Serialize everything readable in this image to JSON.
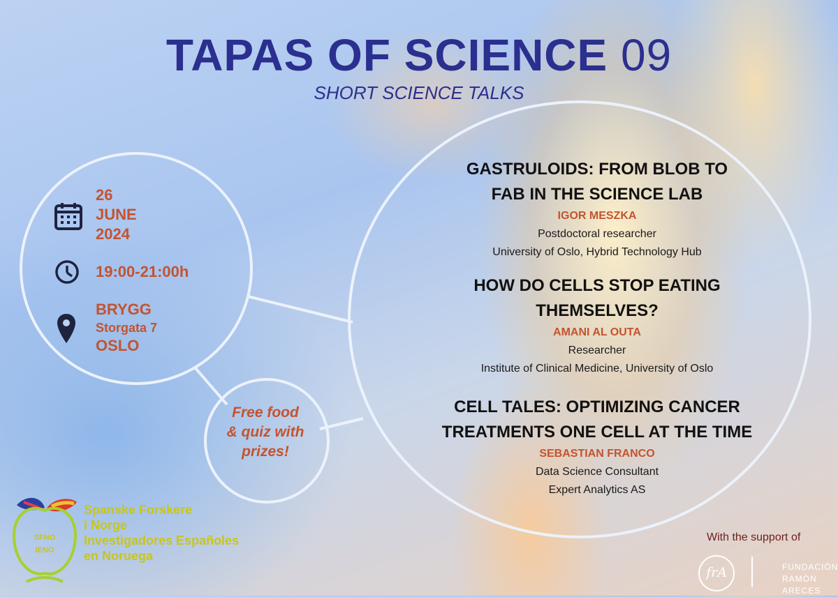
{
  "header": {
    "title": "TAPAS OF SCIENCE",
    "title_number": "09",
    "subtitle": "SHORT SCIENCE TALKS"
  },
  "event": {
    "date_day": "26",
    "date_month": "JUNE",
    "date_year": "2024",
    "time": "19:00-21:00h",
    "venue": "BRYGG",
    "street": "Storgata 7",
    "city": "OSLO",
    "icons": [
      "calendar-icon",
      "clock-icon",
      "location-pin-icon"
    ]
  },
  "talks": [
    {
      "title_line1": "GASTRULOIDS: FROM BLOB TO",
      "title_line2": "FAB IN THE SCIENCE LAB",
      "speaker": "IGOR MESZKA",
      "role": "Postdoctoral researcher",
      "affiliation": "University of Oslo, Hybrid Technology Hub"
    },
    {
      "title_line1": "HOW DO CELLS STOP EATING",
      "title_line2": "THEMSELVES?",
      "speaker": "AMANI AL OUTA",
      "role": "Researcher",
      "affiliation": "Institute of Clinical Medicine, University of Oslo"
    },
    {
      "title_line1": "CELL TALES: OPTIMIZING CANCER",
      "title_line2": "TREATMENTS ONE CELL AT THE TIME",
      "speaker": "SEBASTIAN FRANCO",
      "role": "Data Science Consultant",
      "affiliation": "Expert Analytics AS"
    }
  ],
  "extras": {
    "line1": "Free food",
    "line2": "& quiz with",
    "line3": "prizes!"
  },
  "organizer": {
    "logo_top": "SFNO",
    "logo_bottom": "IENO",
    "line1": "Spanske Forskere",
    "line2": "i Norge",
    "line3": "Investigadores Españoles",
    "line4": "en Noruega"
  },
  "sponsor": {
    "support_text": "With the support of",
    "logo_text": "frA",
    "name_line1": "FUNDACIÓN",
    "name_line2": "RAMÓN ARECES"
  },
  "colors": {
    "title": "#2b2f8f",
    "accent": "#c4532f",
    "organizer": "#c7c61a"
  }
}
